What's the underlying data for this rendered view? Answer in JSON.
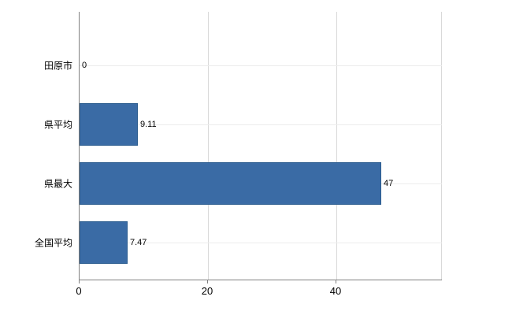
{
  "chart_data": {
    "type": "bar",
    "orientation": "horizontal",
    "title": "",
    "categories": [
      "田原市",
      "県平均",
      "県最大",
      "全国平均"
    ],
    "values": [
      0,
      9.11,
      47,
      7.47
    ],
    "value_labels": [
      "0",
      "9.11",
      "47",
      "7.47"
    ],
    "x_ticks": [
      0,
      20,
      40
    ],
    "x_tick_labels": [
      "0",
      "20",
      "40"
    ],
    "xlim": [
      0,
      56.4
    ],
    "grid": "vertical-light",
    "legend": "none",
    "bar_color": "#3a6ba5",
    "bar_border_color": "#2c5d8f",
    "axis_color": "#808080",
    "background_color": "#ffffff"
  }
}
